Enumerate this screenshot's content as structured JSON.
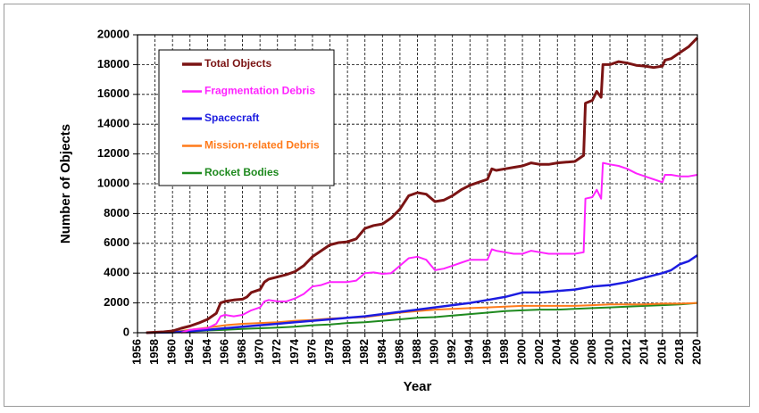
{
  "chart_data": {
    "type": "line",
    "title": "",
    "xlabel": "Year",
    "ylabel": "Number of Objects",
    "xlim": [
      1956,
      2020
    ],
    "ylim": [
      0,
      20000
    ],
    "x_tick_step": 2,
    "y_tick_step": 2000,
    "grid": true,
    "legend_position": "top-left",
    "series": [
      {
        "name": "Total Objects",
        "color": "#7b1414",
        "width": 3,
        "points": [
          [
            1957,
            0
          ],
          [
            1958,
            30
          ],
          [
            1959,
            60
          ],
          [
            1960,
            120
          ],
          [
            1961,
            300
          ],
          [
            1962,
            450
          ],
          [
            1963,
            650
          ],
          [
            1964,
            900
          ],
          [
            1965,
            1300
          ],
          [
            1965.5,
            2000
          ],
          [
            1966,
            2100
          ],
          [
            1967,
            2200
          ],
          [
            1968,
            2250
          ],
          [
            1968.5,
            2400
          ],
          [
            1969,
            2700
          ],
          [
            1970,
            2900
          ],
          [
            1970.5,
            3400
          ],
          [
            1971,
            3600
          ],
          [
            1972,
            3750
          ],
          [
            1973,
            3900
          ],
          [
            1974,
            4100
          ],
          [
            1975,
            4500
          ],
          [
            1976,
            5100
          ],
          [
            1977,
            5500
          ],
          [
            1978,
            5900
          ],
          [
            1979,
            6050
          ],
          [
            1980,
            6100
          ],
          [
            1981,
            6300
          ],
          [
            1982,
            7000
          ],
          [
            1983,
            7200
          ],
          [
            1984,
            7300
          ],
          [
            1985,
            7700
          ],
          [
            1986,
            8300
          ],
          [
            1987,
            9200
          ],
          [
            1988,
            9400
          ],
          [
            1989,
            9300
          ],
          [
            1990,
            8800
          ],
          [
            1991,
            8900
          ],
          [
            1992,
            9200
          ],
          [
            1993,
            9600
          ],
          [
            1994,
            9900
          ],
          [
            1995,
            10100
          ],
          [
            1996,
            10300
          ],
          [
            1996.5,
            11000
          ],
          [
            1997,
            10900
          ],
          [
            1998,
            11000
          ],
          [
            1999,
            11100
          ],
          [
            2000,
            11200
          ],
          [
            2001,
            11400
          ],
          [
            2002,
            11300
          ],
          [
            2003,
            11300
          ],
          [
            2004,
            11400
          ],
          [
            2005,
            11450
          ],
          [
            2006,
            11500
          ],
          [
            2007,
            11900
          ],
          [
            2007.2,
            15400
          ],
          [
            2008,
            15600
          ],
          [
            2008.5,
            16200
          ],
          [
            2009,
            15800
          ],
          [
            2009.2,
            18000
          ],
          [
            2010,
            18000
          ],
          [
            2011,
            18200
          ],
          [
            2012,
            18100
          ],
          [
            2013,
            17950
          ],
          [
            2014,
            17900
          ],
          [
            2015,
            17800
          ],
          [
            2016,
            17900
          ],
          [
            2016.3,
            18300
          ],
          [
            2017,
            18400
          ],
          [
            2018,
            18800
          ],
          [
            2019,
            19200
          ],
          [
            2020,
            19800
          ]
        ]
      },
      {
        "name": "Fragmentation Debris",
        "color": "#ff22ff",
        "width": 2,
        "points": [
          [
            1961,
            0
          ],
          [
            1962,
            200
          ],
          [
            1963,
            250
          ],
          [
            1964,
            300
          ],
          [
            1965,
            600
          ],
          [
            1965.5,
            1100
          ],
          [
            1966,
            1200
          ],
          [
            1967,
            1100
          ],
          [
            1968,
            1200
          ],
          [
            1969,
            1500
          ],
          [
            1970,
            1700
          ],
          [
            1970.5,
            2100
          ],
          [
            1971,
            2200
          ],
          [
            1972,
            2100
          ],
          [
            1973,
            2100
          ],
          [
            1974,
            2300
          ],
          [
            1975,
            2600
          ],
          [
            1976,
            3100
          ],
          [
            1977,
            3200
          ],
          [
            1978,
            3400
          ],
          [
            1979,
            3400
          ],
          [
            1980,
            3400
          ],
          [
            1981,
            3500
          ],
          [
            1982,
            4000
          ],
          [
            1983,
            4050
          ],
          [
            1984,
            3950
          ],
          [
            1985,
            4000
          ],
          [
            1986,
            4500
          ],
          [
            1987,
            5000
          ],
          [
            1988,
            5100
          ],
          [
            1989,
            4900
          ],
          [
            1990,
            4200
          ],
          [
            1991,
            4300
          ],
          [
            1992,
            4500
          ],
          [
            1993,
            4700
          ],
          [
            1994,
            4900
          ],
          [
            1995,
            4900
          ],
          [
            1996,
            4900
          ],
          [
            1996.5,
            5600
          ],
          [
            1997,
            5500
          ],
          [
            1998,
            5400
          ],
          [
            1999,
            5300
          ],
          [
            2000,
            5300
          ],
          [
            2001,
            5500
          ],
          [
            2002,
            5400
          ],
          [
            2003,
            5300
          ],
          [
            2004,
            5300
          ],
          [
            2005,
            5300
          ],
          [
            2006,
            5300
          ],
          [
            2007,
            5400
          ],
          [
            2007.2,
            9000
          ],
          [
            2008,
            9100
          ],
          [
            2008.5,
            9600
          ],
          [
            2009,
            9000
          ],
          [
            2009.2,
            11400
          ],
          [
            2010,
            11300
          ],
          [
            2011,
            11200
          ],
          [
            2012,
            11000
          ],
          [
            2013,
            10700
          ],
          [
            2014,
            10500
          ],
          [
            2015,
            10300
          ],
          [
            2016,
            10100
          ],
          [
            2016.3,
            10600
          ],
          [
            2017,
            10600
          ],
          [
            2018,
            10500
          ],
          [
            2019,
            10500
          ],
          [
            2020,
            10600
          ]
        ]
      },
      {
        "name": "Spacecraft",
        "color": "#1c1ce0",
        "width": 2.5,
        "points": [
          [
            1957,
            0
          ],
          [
            1960,
            30
          ],
          [
            1962,
            100
          ],
          [
            1964,
            200
          ],
          [
            1966,
            300
          ],
          [
            1968,
            400
          ],
          [
            1970,
            500
          ],
          [
            1972,
            600
          ],
          [
            1974,
            700
          ],
          [
            1976,
            800
          ],
          [
            1978,
            900
          ],
          [
            1980,
            1000
          ],
          [
            1982,
            1100
          ],
          [
            1984,
            1250
          ],
          [
            1986,
            1400
          ],
          [
            1988,
            1550
          ],
          [
            1990,
            1700
          ],
          [
            1992,
            1850
          ],
          [
            1994,
            2000
          ],
          [
            1996,
            2200
          ],
          [
            1998,
            2400
          ],
          [
            2000,
            2700
          ],
          [
            2002,
            2700
          ],
          [
            2004,
            2800
          ],
          [
            2006,
            2900
          ],
          [
            2008,
            3100
          ],
          [
            2010,
            3200
          ],
          [
            2012,
            3400
          ],
          [
            2014,
            3700
          ],
          [
            2016,
            4000
          ],
          [
            2017,
            4200
          ],
          [
            2018,
            4600
          ],
          [
            2019,
            4800
          ],
          [
            2020,
            5200
          ]
        ]
      },
      {
        "name": "Mission-related Debris",
        "color": "#ff7a1a",
        "width": 2,
        "points": [
          [
            1957,
            0
          ],
          [
            1960,
            40
          ],
          [
            1962,
            200
          ],
          [
            1964,
            350
          ],
          [
            1966,
            500
          ],
          [
            1968,
            600
          ],
          [
            1970,
            650
          ],
          [
            1972,
            700
          ],
          [
            1974,
            800
          ],
          [
            1976,
            850
          ],
          [
            1978,
            950
          ],
          [
            1980,
            1000
          ],
          [
            1982,
            1050
          ],
          [
            1984,
            1200
          ],
          [
            1986,
            1350
          ],
          [
            1988,
            1450
          ],
          [
            1990,
            1550
          ],
          [
            1992,
            1600
          ],
          [
            1994,
            1650
          ],
          [
            1996,
            1700
          ],
          [
            1998,
            1750
          ],
          [
            2000,
            1800
          ],
          [
            2002,
            1800
          ],
          [
            2004,
            1800
          ],
          [
            2006,
            1800
          ],
          [
            2008,
            1850
          ],
          [
            2010,
            1900
          ],
          [
            2012,
            1900
          ],
          [
            2014,
            1900
          ],
          [
            2016,
            1950
          ],
          [
            2018,
            1950
          ],
          [
            2020,
            2000
          ]
        ]
      },
      {
        "name": "Rocket Bodies",
        "color": "#1f8a1f",
        "width": 2,
        "points": [
          [
            1957,
            0
          ],
          [
            1960,
            20
          ],
          [
            1962,
            80
          ],
          [
            1964,
            150
          ],
          [
            1966,
            200
          ],
          [
            1968,
            250
          ],
          [
            1970,
            300
          ],
          [
            1972,
            350
          ],
          [
            1974,
            400
          ],
          [
            1976,
            500
          ],
          [
            1978,
            550
          ],
          [
            1980,
            650
          ],
          [
            1982,
            700
          ],
          [
            1984,
            800
          ],
          [
            1986,
            900
          ],
          [
            1988,
            1000
          ],
          [
            1990,
            1050
          ],
          [
            1992,
            1150
          ],
          [
            1994,
            1250
          ],
          [
            1996,
            1350
          ],
          [
            1998,
            1450
          ],
          [
            2000,
            1500
          ],
          [
            2002,
            1550
          ],
          [
            2004,
            1550
          ],
          [
            2006,
            1600
          ],
          [
            2008,
            1650
          ],
          [
            2010,
            1700
          ],
          [
            2012,
            1750
          ],
          [
            2014,
            1800
          ],
          [
            2016,
            1850
          ],
          [
            2018,
            1900
          ],
          [
            2020,
            2000
          ]
        ]
      }
    ]
  }
}
